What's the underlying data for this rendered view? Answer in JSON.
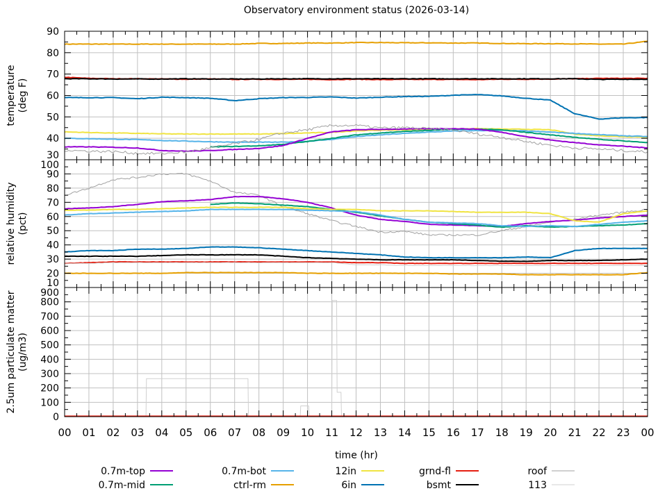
{
  "chart_data": {
    "type": "line",
    "title": "Observatory environment status (2026-03-14)",
    "xlabel": "time (hr)",
    "x_ticks": [
      "00",
      "01",
      "02",
      "03",
      "04",
      "05",
      "06",
      "07",
      "08",
      "09",
      "10",
      "11",
      "12",
      "13",
      "14",
      "15",
      "16",
      "17",
      "18",
      "19",
      "20",
      "21",
      "22",
      "23",
      "00"
    ],
    "xlim": [
      0,
      24
    ],
    "grid": true,
    "legend_position": "bottom",
    "legend": [
      {
        "name": "0.7m-top",
        "color": "#9400d3"
      },
      {
        "name": "0.7m-mid",
        "color": "#009e73"
      },
      {
        "name": "0.7m-bot",
        "color": "#56b4e9"
      },
      {
        "name": "ctrl-rm",
        "color": "#e69f00"
      },
      {
        "name": "12in",
        "color": "#f0e442"
      },
      {
        "name": "6in",
        "color": "#0072b2"
      },
      {
        "name": "grnd-fl",
        "color": "#e51e10"
      },
      {
        "name": "bsmt",
        "color": "#000000"
      },
      {
        "name": "roof",
        "color": "#a0a0a0"
      },
      {
        "name": "113",
        "color": "#d0d0d0"
      }
    ],
    "panels": [
      {
        "ylabel": [
          "temperature",
          "(deg F)"
        ],
        "ylim": [
          30,
          90
        ],
        "y_ticks": [
          30,
          40,
          50,
          60,
          70,
          80,
          90
        ],
        "x": [
          0,
          1,
          2,
          3,
          4,
          5,
          6,
          7,
          8,
          9,
          10,
          11,
          12,
          13,
          14,
          15,
          16,
          17,
          18,
          19,
          20,
          21,
          22,
          23,
          24
        ],
        "series": [
          {
            "name": "ctrl-rm",
            "values": [
              84,
              84,
              84,
              84,
              84,
              84,
              84,
              84,
              84.3,
              84.3,
              84.5,
              84.5,
              84.7,
              84.7,
              84.6,
              84.6,
              84.5,
              84.5,
              84.3,
              84.2,
              84.2,
              84.1,
              84,
              84,
              85.3
            ]
          },
          {
            "name": "grnd-fl",
            "values": [
              68.5,
              68,
              67.8,
              67.8,
              67.7,
              67.6,
              67.7,
              67.5,
              67.6,
              67.5,
              67.6,
              67.4,
              67.6,
              67.4,
              67.5,
              67.5,
              67.5,
              67.4,
              67.6,
              67.6,
              67.7,
              67.8,
              68,
              68,
              68
            ]
          },
          {
            "name": "bsmt",
            "values": [
              67.8,
              67.8,
              67.7,
              67.7,
              67.7,
              67.8,
              67.7,
              67.7,
              67.7,
              67.8,
              67.8,
              67.8,
              67.8,
              67.8,
              67.8,
              67.8,
              67.8,
              67.8,
              67.8,
              67.8,
              67.8,
              67.8,
              67.5,
              67.6,
              67.6
            ]
          },
          {
            "name": "6in",
            "values": [
              59,
              59,
              59,
              58.5,
              59.2,
              59,
              58.7,
              57.6,
              58.5,
              59,
              59.1,
              59.3,
              58.8,
              59.2,
              59.5,
              59.6,
              60.1,
              60.4,
              59.8,
              58.7,
              57.8,
              51.5,
              49,
              49.6,
              49.7
            ]
          },
          {
            "name": "12in",
            "values": [
              43,
              42.7,
              42.5,
              42.3,
              42.1,
              42,
              42,
              42,
              42,
              42.2,
              42.5,
              42.8,
              43.5,
              43.8,
              44,
              44.2,
              44.4,
              44.5,
              44.3,
              44.2,
              44,
              42,
              41.2,
              40.8,
              40.6
            ]
          },
          {
            "name": "0.7m-bot",
            "values": [
              40,
              39.8,
              39.6,
              39.4,
              39,
              38.7,
              38.4,
              38.2,
              38.2,
              38.2,
              38.6,
              39.5,
              40.8,
              41.6,
              42.3,
              42.9,
              43.4,
              43.6,
              43.7,
              43.4,
              42.9,
              42.3,
              41.7,
              41.2,
              40.8
            ]
          },
          {
            "name": "0.7m-mid",
            "values": [
              null,
              null,
              null,
              null,
              null,
              null,
              36,
              36.2,
              36.5,
              37.2,
              38.5,
              40,
              41.6,
              42.5,
              43.2,
              43.7,
              44.2,
              44.3,
              43.9,
              42.8,
              41.6,
              40.5,
              39.5,
              38.8,
              38
            ]
          },
          {
            "name": "0.7m-top",
            "values": [
              36,
              36,
              35.8,
              35.5,
              34.3,
              34,
              34.3,
              34.8,
              35.3,
              36.6,
              40,
              43,
              44,
              44.2,
              44.3,
              44.5,
              44.5,
              44.3,
              42.8,
              40.8,
              39.2,
              38,
              37,
              36.3,
              35.5
            ]
          },
          {
            "name": "roof",
            "values": [
              34.5,
              34,
              33.8,
              33,
              32.9,
              33.6,
              35.5,
              37.5,
              39.5,
              42.5,
              44,
              46,
              46,
              44.8,
              45,
              44.5,
              43.9,
              42,
              40.5,
              38.5,
              36.8,
              35.5,
              35,
              34.3,
              33.6
            ]
          }
        ]
      },
      {
        "ylabel": [
          "relative humidity",
          "(pct)"
        ],
        "ylim": [
          10,
          100
        ],
        "y_ticks": [
          10,
          20,
          30,
          40,
          50,
          60,
          70,
          80,
          90,
          100
        ],
        "x": [
          0,
          1,
          2,
          3,
          4,
          5,
          6,
          7,
          8,
          9,
          10,
          11,
          12,
          13,
          14,
          15,
          16,
          17,
          18,
          19,
          20,
          21,
          22,
          23,
          24
        ],
        "series": [
          {
            "name": "roof",
            "values": [
              75,
              80,
              86,
              87.5,
              90,
              90,
              85,
              77,
              75,
              67,
              62,
              57,
              53,
              49,
              49.5,
              47,
              47,
              47,
              50,
              53,
              56,
              58,
              61,
              63,
              65
            ]
          },
          {
            "name": "0.7m-top",
            "values": [
              65.5,
              66,
              67,
              68.5,
              70.5,
              71,
              72,
              74,
              74,
              72.5,
              70,
              66,
              61,
              58,
              56.5,
              54.5,
              54,
              53.5,
              53,
              55,
              56.5,
              57.5,
              59,
              60,
              61
            ]
          },
          {
            "name": "0.7m-mid",
            "values": [
              null,
              null,
              null,
              null,
              null,
              null,
              68.5,
              69.5,
              69,
              68,
              67,
              65,
              63,
              60.5,
              58,
              56,
              55,
              54,
              52.5,
              53.5,
              52.5,
              53,
              53.5,
              54,
              55
            ]
          },
          {
            "name": "12in",
            "values": [
              64.5,
              64.5,
              65,
              65,
              65.5,
              66,
              66.5,
              66.5,
              66.5,
              66.5,
              65.5,
              65,
              65,
              64,
              64,
              64,
              63.5,
              63,
              63,
              63,
              62,
              57,
              56,
              62,
              64
            ]
          },
          {
            "name": "0.7m-bot",
            "values": [
              61,
              62,
              62.5,
              63,
              63.5,
              64,
              65,
              65,
              65,
              65,
              64.5,
              64,
              63.5,
              61,
              58,
              56,
              55.5,
              55,
              53.5,
              53,
              53.5,
              53,
              54.5,
              56,
              57
            ]
          },
          {
            "name": "6in",
            "values": [
              35,
              36,
              36,
              37,
              37,
              37.5,
              38.5,
              38.5,
              38,
              37,
              36,
              35,
              34,
              33,
              31.5,
              31,
              31,
              31,
              31,
              31.5,
              31,
              36,
              37.5,
              37.5,
              37.5
            ]
          },
          {
            "name": "bsmt",
            "values": [
              32,
              32,
              32,
              32,
              32.5,
              33,
              33,
              33,
              33,
              32,
              31,
              30.5,
              30,
              29.5,
              29.5,
              29.5,
              29.5,
              29,
              28.5,
              28.5,
              29,
              29,
              29,
              29.5,
              30
            ]
          },
          {
            "name": "grnd-fl",
            "values": [
              27,
              27.5,
              28,
              28,
              28,
              28,
              28,
              28,
              28,
              28,
              28,
              28,
              27.5,
              27.5,
              27,
              27,
              27,
              27,
              27,
              27,
              27,
              27,
              27,
              27,
              27
            ]
          },
          {
            "name": "113",
            "values": [
              27,
              27,
              27.5,
              27.5,
              27.5,
              27.5,
              27.5,
              27.5,
              27.5,
              27.5,
              27.5,
              27.5,
              26,
              26,
              25.5,
              25.5,
              25.5,
              25.5,
              25.5,
              25.5,
              25.5,
              25.5,
              25.5,
              25.5,
              25.5
            ]
          },
          {
            "name": "ctrl-rm",
            "values": [
              20,
              20,
              20,
              20,
              20,
              20.5,
              20.5,
              20.5,
              20.5,
              20.5,
              20,
              20,
              20,
              20,
              20,
              20,
              19.5,
              19.5,
              19.5,
              19,
              19,
              19,
              19,
              19,
              20.5
            ]
          }
        ]
      },
      {
        "ylabel": [
          "2.5um particulate matter",
          "(ug/m3)"
        ],
        "ylim": [
          0,
          900
        ],
        "y_ticks": [
          0,
          100,
          200,
          300,
          400,
          500,
          600,
          700,
          800,
          900
        ],
        "series": [
          {
            "name": "113",
            "x": [
              0,
              3.35,
              3.37,
              7.55,
              7.57,
              9.7,
              9.72,
              10.05,
              10.07,
              11.0,
              11.02,
              11.2,
              11.22,
              11.38,
              11.4,
              24
            ],
            "values": [
              0,
              0,
              265,
              265,
              0,
              0,
              75,
              75,
              0,
              0,
              810,
              810,
              170,
              170,
              0,
              0
            ]
          },
          {
            "name": "grnd-fl",
            "x": [
              0,
              24
            ],
            "values": [
              3,
              3
            ]
          }
        ]
      }
    ]
  }
}
